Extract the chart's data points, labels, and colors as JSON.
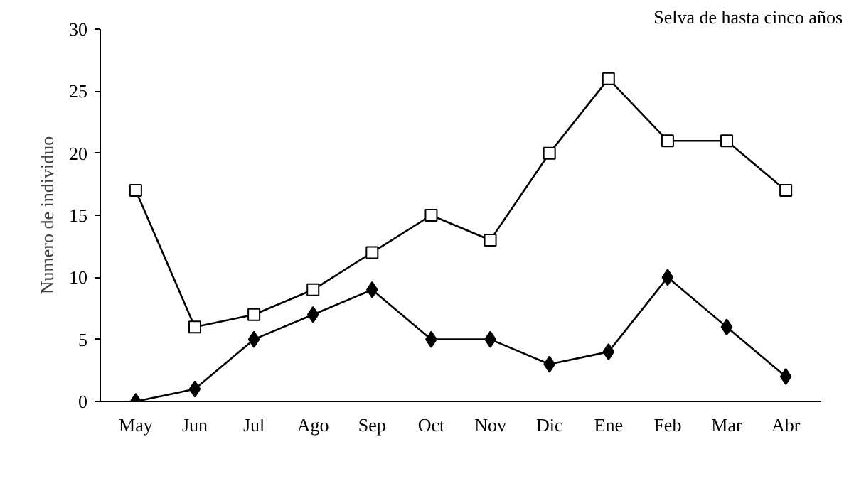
{
  "chart_data": {
    "type": "line",
    "title": "Selva de hasta cinco años",
    "ylabel": "Numero de individuo",
    "categories": [
      "May",
      "Jun",
      "Jul",
      "Ago",
      "Sep",
      "Oct",
      "Nov",
      "Dic",
      "Ene",
      "Feb",
      "Mar",
      "Abr"
    ],
    "series": [
      {
        "color": "#000000",
        "marker": "square",
        "values": [
          17,
          6,
          7,
          9,
          12,
          15,
          13,
          20,
          26,
          21,
          21,
          17
        ]
      },
      {
        "color": "#000000",
        "marker": "diamond",
        "values": [
          0,
          1,
          5,
          7,
          9,
          5,
          5,
          3,
          4,
          10,
          6,
          2
        ]
      }
    ],
    "ylim": [
      0,
      30
    ],
    "yticks": [
      0,
      5,
      10,
      15,
      20,
      25,
      30
    ],
    "grid": false,
    "line_style": "solid"
  }
}
